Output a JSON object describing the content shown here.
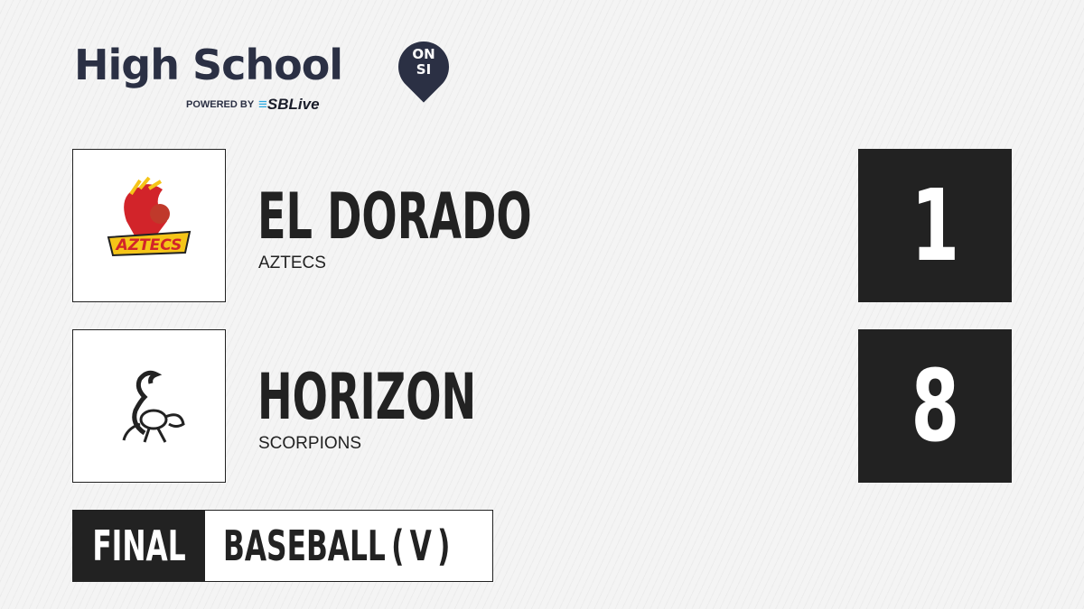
{
  "brand": {
    "title": "High School",
    "badge_top": "ON",
    "badge_bottom": "SI",
    "powered_by": "POWERED BY",
    "partner": "SBLive"
  },
  "teams": [
    {
      "name": "EL DORADO",
      "mascot": "AZTECS",
      "score": "1",
      "logo_text": "AZTECS",
      "logo_colors": [
        "#d2242a",
        "#f5c518"
      ]
    },
    {
      "name": "HORIZON",
      "mascot": "SCORPIONS",
      "score": "8"
    }
  ],
  "status": {
    "label": "FINAL",
    "sport": "BASEBALL ( V )"
  }
}
